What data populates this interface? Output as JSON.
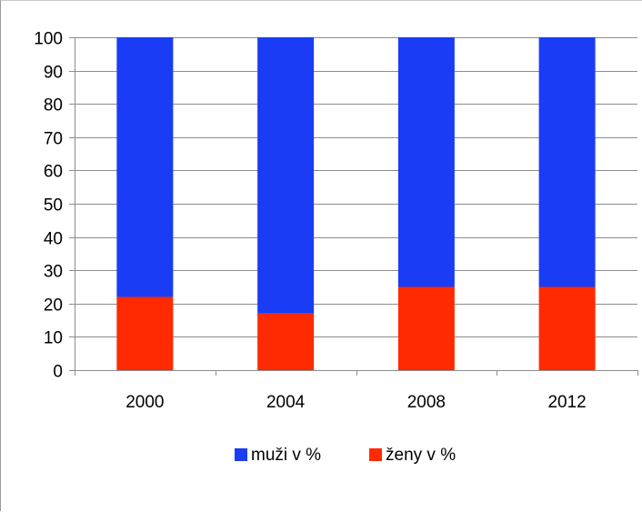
{
  "chart_data": {
    "type": "bar",
    "stacked": true,
    "categories": [
      "2000",
      "2004",
      "2008",
      "2012"
    ],
    "series": [
      {
        "name": "ženy v %",
        "values": [
          22,
          17,
          25,
          25
        ],
        "color": "#ff2a00"
      },
      {
        "name": "muži v %",
        "values": [
          78,
          83,
          75,
          75
        ],
        "color": "#1a3cf5"
      }
    ],
    "legend_order": [
      1,
      0
    ],
    "xlabel": "",
    "ylabel": "",
    "ylim": [
      0,
      100
    ],
    "yticks": [
      0,
      10,
      20,
      30,
      40,
      50,
      60,
      70,
      80,
      90,
      100
    ],
    "grid": true,
    "legend_position": "bottom",
    "colors": {
      "grid": "#8c8c8c",
      "axis": "#8c8c8c"
    }
  }
}
